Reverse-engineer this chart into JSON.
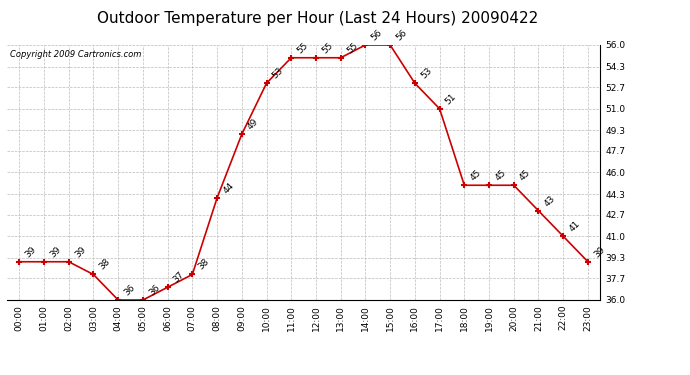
{
  "title": "Outdoor Temperature per Hour (Last 24 Hours) 20090422",
  "copyright": "Copyright 2009 Cartronics.com",
  "hours": [
    "00:00",
    "01:00",
    "02:00",
    "03:00",
    "04:00",
    "05:00",
    "06:00",
    "07:00",
    "08:00",
    "09:00",
    "10:00",
    "11:00",
    "12:00",
    "13:00",
    "14:00",
    "15:00",
    "16:00",
    "17:00",
    "18:00",
    "19:00",
    "20:00",
    "21:00",
    "22:00",
    "23:00"
  ],
  "temps": [
    39,
    39,
    39,
    38,
    36,
    36,
    37,
    38,
    44,
    49,
    53,
    55,
    55,
    55,
    56,
    56,
    53,
    51,
    45,
    45,
    45,
    43,
    41,
    39
  ],
  "ylim": [
    36.0,
    56.0
  ],
  "yticks": [
    36.0,
    37.7,
    39.3,
    41.0,
    42.7,
    44.3,
    46.0,
    47.7,
    49.3,
    51.0,
    52.7,
    54.3,
    56.0
  ],
  "line_color": "#cc0000",
  "marker_color": "#cc0000",
  "bg_color": "#ffffff",
  "grid_color": "#bbbbbb",
  "title_fontsize": 11,
  "label_fontsize": 6.5,
  "tick_fontsize": 6.5,
  "copyright_fontsize": 6
}
